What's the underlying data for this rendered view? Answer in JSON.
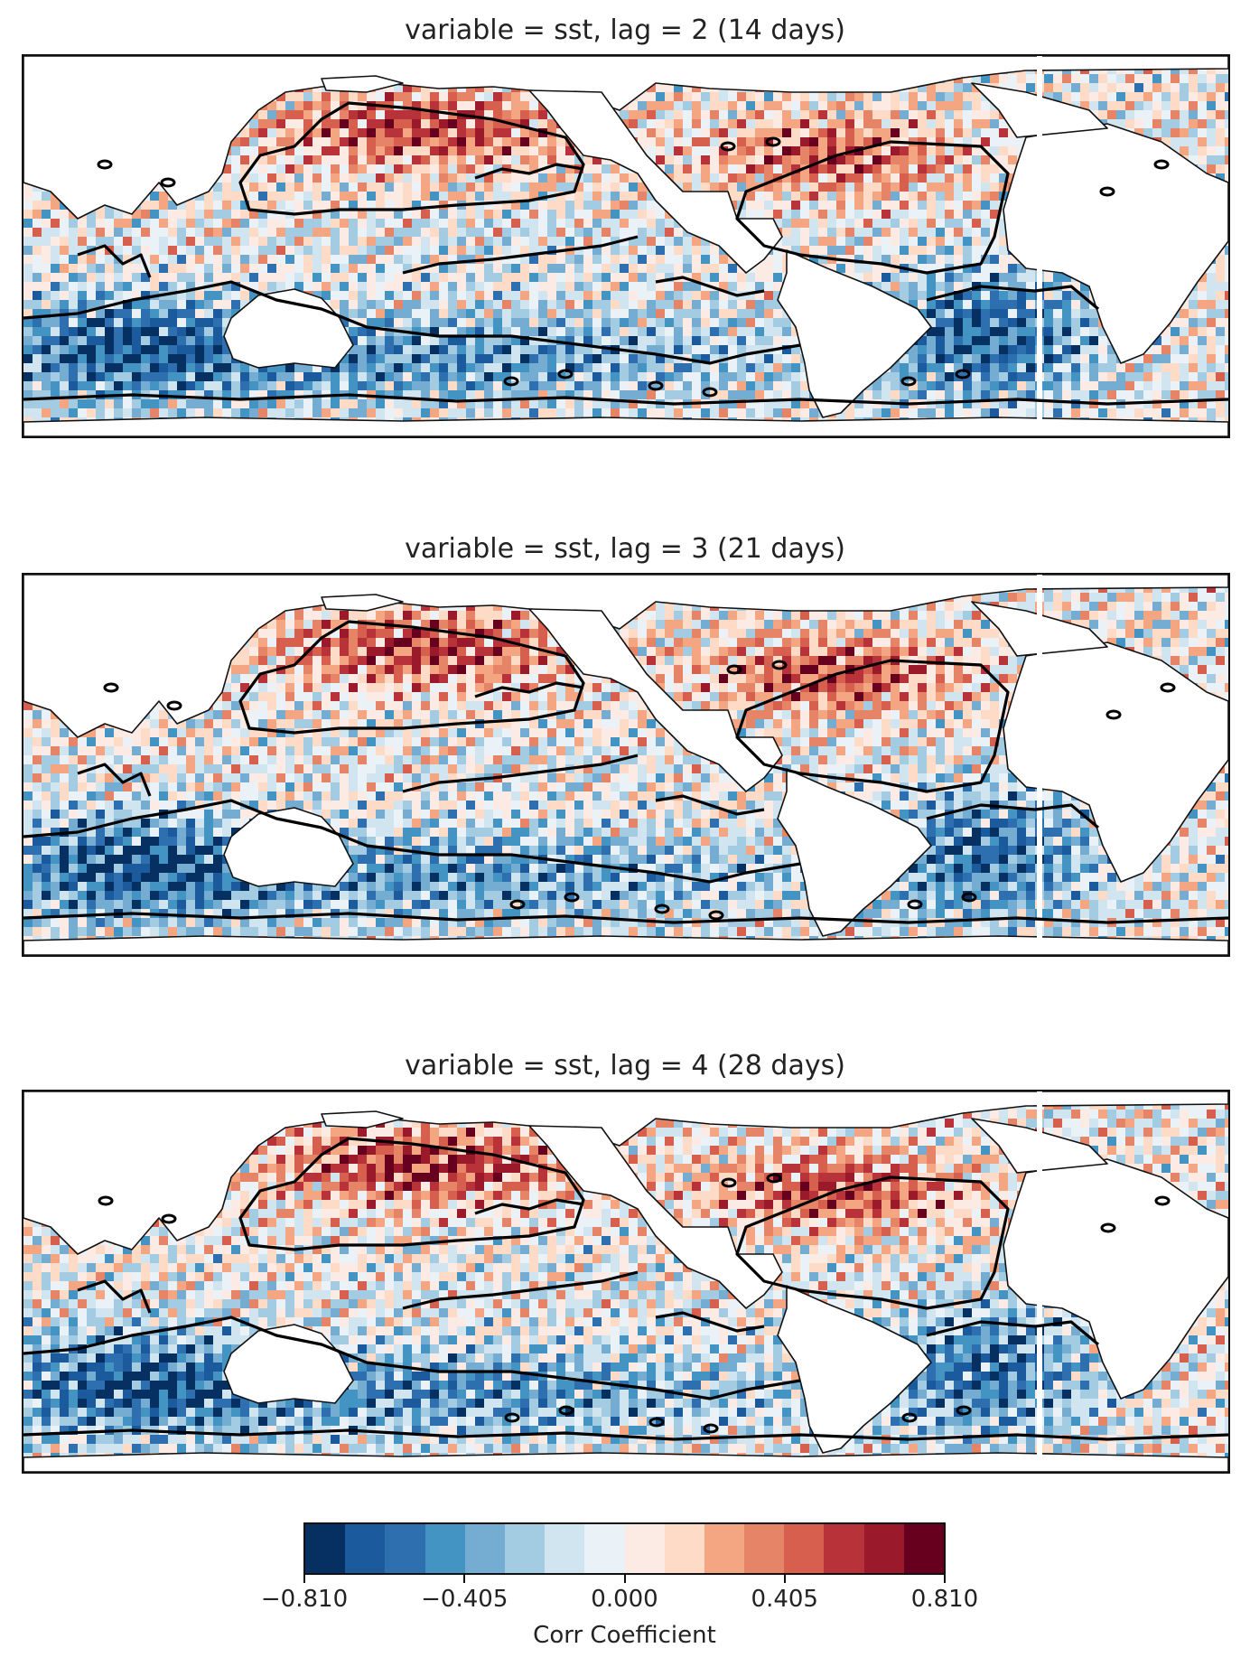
{
  "chart_data": [
    {
      "type": "heatmap",
      "title": "variable = sst, lag = 2 (14 days)",
      "projection": "global map (Pacific-centred)",
      "variable": "sst",
      "lag": 2,
      "lag_days": 14,
      "features": {
        "north_pacific": 0.55,
        "north_atlantic": 0.5,
        "tropical_pacific": -0.1,
        "southern_ocean_pacific": -0.45,
        "south_atlantic": -0.6,
        "indian_ocean": -0.5
      }
    },
    {
      "type": "heatmap",
      "title": "variable = sst, lag = 3 (21 days)",
      "projection": "global map (Pacific-centred)",
      "variable": "sst",
      "lag": 3,
      "lag_days": 21,
      "features": {
        "north_pacific": 0.55,
        "north_atlantic": 0.55,
        "tropical_pacific": -0.05,
        "southern_ocean_pacific": -0.45,
        "south_atlantic": -0.55,
        "indian_ocean": -0.5
      }
    },
    {
      "type": "heatmap",
      "title": "variable = sst, lag = 4 (28 days)",
      "projection": "global map (Pacific-centred)",
      "variable": "sst",
      "lag": 4,
      "lag_days": 28,
      "features": {
        "north_pacific": 0.6,
        "north_atlantic": 0.55,
        "tropical_pacific": -0.05,
        "southern_ocean_pacific": -0.45,
        "south_atlantic": -0.55,
        "indian_ocean": -0.5
      }
    }
  ],
  "colorbar": {
    "label": "Corr Coefficient",
    "min": -0.81,
    "max": 0.81,
    "tick_values": [
      -0.81,
      -0.405,
      0.0,
      0.405,
      0.81
    ],
    "tick_labels": [
      "−0.810",
      "−0.405",
      "0.000",
      "0.405",
      "0.810"
    ],
    "colors": [
      "#053061",
      "#1b5a9c",
      "#2e6fb0",
      "#4393c3",
      "#74add1",
      "#a3cce3",
      "#d1e5f0",
      "#eaf2f7",
      "#fbebe4",
      "#fddbc7",
      "#f4a582",
      "#e58467",
      "#d6604d",
      "#b8323a",
      "#9a1a2c",
      "#67001f"
    ]
  }
}
